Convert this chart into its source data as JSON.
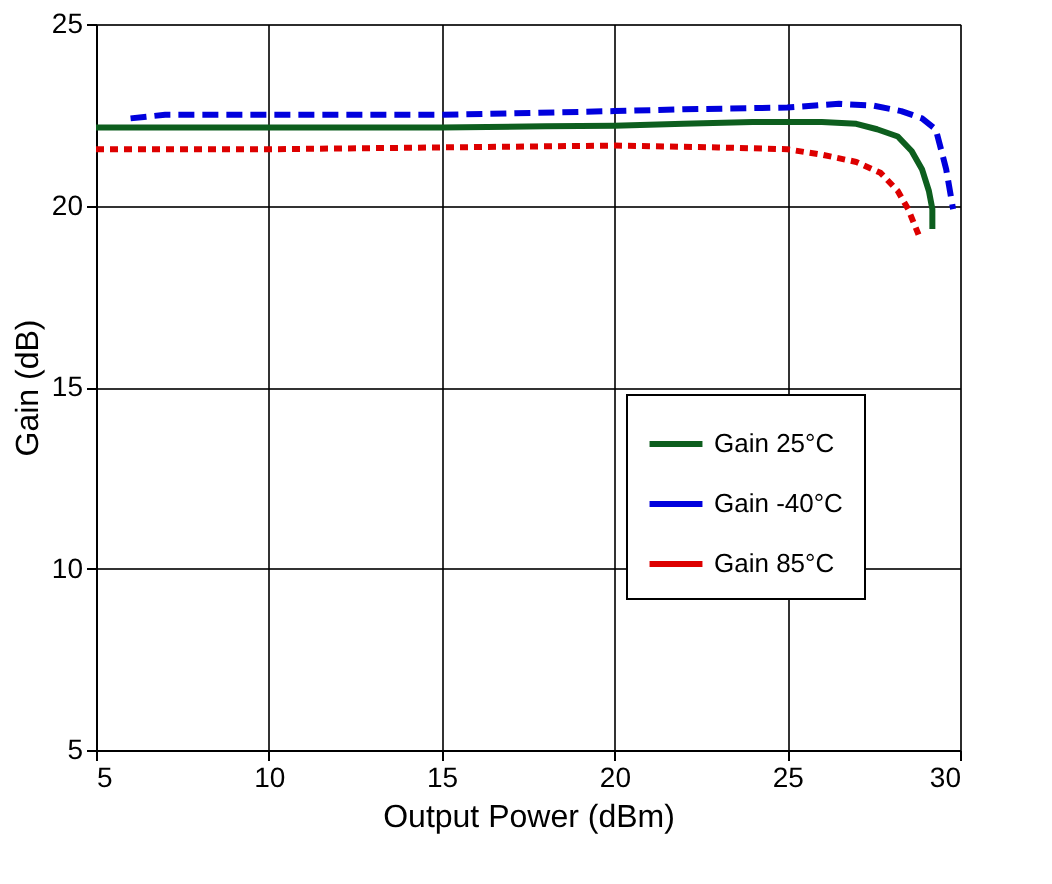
{
  "chart_data": {
    "type": "line",
    "xlabel": "Output Power (dBm)",
    "ylabel": "Gain (dB)",
    "xlim": [
      5,
      30
    ],
    "xticks": [
      5,
      10,
      15,
      20,
      25,
      30
    ],
    "ylim": [
      5,
      25
    ],
    "yticks": [
      5,
      10,
      15,
      20,
      25
    ],
    "grid": true,
    "legend": "right",
    "series": [
      {
        "name": "Gain 25°C",
        "color": "#0d5e1e",
        "line_style": "solid",
        "x": [
          5,
          10,
          15,
          18,
          20,
          22,
          24,
          26,
          27,
          27.6,
          28.2,
          28.6,
          28.9,
          29.1,
          29.2,
          29.2
        ],
        "values": [
          22.15,
          22.15,
          22.15,
          22.18,
          22.2,
          22.25,
          22.3,
          22.3,
          22.25,
          22.1,
          21.9,
          21.5,
          21.0,
          20.4,
          19.9,
          19.35
        ]
      },
      {
        "name": "Gain -40°C",
        "color": "#0000dd",
        "line_style": "dashed",
        "x": [
          6,
          7,
          10,
          15,
          20,
          22,
          25,
          26.5,
          27.5,
          28.3,
          28.9,
          29.3,
          29.6,
          29.8
        ],
        "values": [
          22.4,
          22.5,
          22.5,
          22.5,
          22.6,
          22.65,
          22.7,
          22.8,
          22.75,
          22.6,
          22.4,
          22.1,
          21.0,
          19.9
        ]
      },
      {
        "name": "Gain 85°C",
        "color": "#dd0000",
        "line_style": "dotted",
        "x": [
          5,
          10,
          15,
          20,
          23,
          25,
          26,
          27,
          27.7,
          28.2,
          28.5,
          28.8
        ],
        "values": [
          21.55,
          21.55,
          21.6,
          21.65,
          21.6,
          21.55,
          21.4,
          21.2,
          20.9,
          20.4,
          19.9,
          19.2
        ]
      }
    ]
  }
}
